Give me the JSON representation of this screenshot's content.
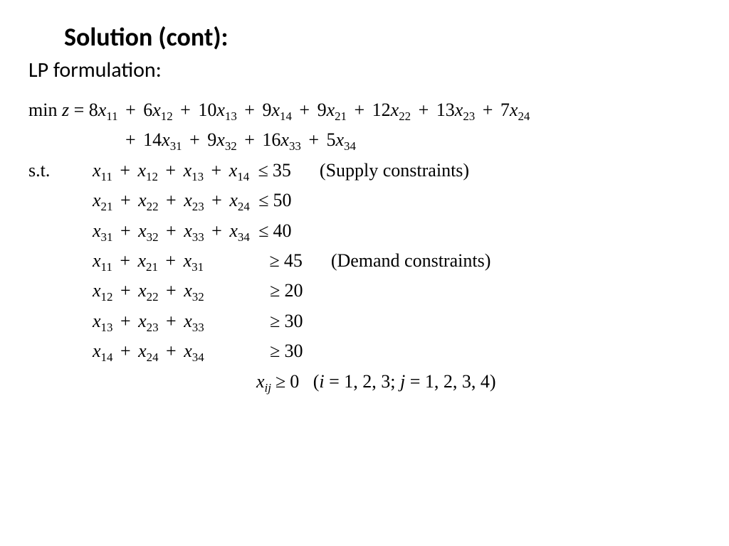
{
  "title": "Solution (cont):",
  "subtitle": "LP formulation:",
  "objective": {
    "prefix": "min ",
    "zvar": "z",
    "eq": " = ",
    "line1_terms": [
      {
        "c": "8",
        "v": "x",
        "s": "11"
      },
      {
        "c": "6",
        "v": "x",
        "s": "12"
      },
      {
        "c": "10",
        "v": "x",
        "s": "13"
      },
      {
        "c": "9",
        "v": "x",
        "s": "14"
      },
      {
        "c": "9",
        "v": "x",
        "s": "21"
      },
      {
        "c": "12",
        "v": "x",
        "s": "22"
      },
      {
        "c": "13",
        "v": "x",
        "s": "23"
      },
      {
        "c": "7",
        "v": "x",
        "s": "24"
      }
    ],
    "line2_terms": [
      {
        "c": "14",
        "v": "x",
        "s": "31"
      },
      {
        "c": "9",
        "v": "x",
        "s": "32"
      },
      {
        "c": "16",
        "v": "x",
        "s": "33"
      },
      {
        "c": "5",
        "v": "x",
        "s": "34"
      }
    ]
  },
  "st_label": "s.t.",
  "supply_comment": "(Supply constraints)",
  "demand_comment": "(Demand constraints)",
  "supply": [
    {
      "terms": [
        {
          "v": "x",
          "s": "11"
        },
        {
          "v": "x",
          "s": "12"
        },
        {
          "v": "x",
          "s": "13"
        },
        {
          "v": "x",
          "s": "14"
        }
      ],
      "rel": "≤",
      "rhs": "35"
    },
    {
      "terms": [
        {
          "v": "x",
          "s": "21"
        },
        {
          "v": "x",
          "s": "22"
        },
        {
          "v": "x",
          "s": "23"
        },
        {
          "v": "x",
          "s": "24"
        }
      ],
      "rel": "≤",
      "rhs": "50"
    },
    {
      "terms": [
        {
          "v": "x",
          "s": "31"
        },
        {
          "v": "x",
          "s": "32"
        },
        {
          "v": "x",
          "s": "33"
        },
        {
          "v": "x",
          "s": "34"
        }
      ],
      "rel": "≤",
      "rhs": "40"
    }
  ],
  "demand": [
    {
      "terms": [
        {
          "v": "x",
          "s": "11"
        },
        {
          "v": "x",
          "s": "21"
        },
        {
          "v": "x",
          "s": "31"
        }
      ],
      "rel": "≥",
      "rhs": "45"
    },
    {
      "terms": [
        {
          "v": "x",
          "s": "12"
        },
        {
          "v": "x",
          "s": "22"
        },
        {
          "v": "x",
          "s": "32"
        }
      ],
      "rel": "≥",
      "rhs": "20"
    },
    {
      "terms": [
        {
          "v": "x",
          "s": "13"
        },
        {
          "v": "x",
          "s": "23"
        },
        {
          "v": "x",
          "s": "33"
        }
      ],
      "rel": "≥",
      "rhs": "30"
    },
    {
      "terms": [
        {
          "v": "x",
          "s": "14"
        },
        {
          "v": "x",
          "s": "24"
        },
        {
          "v": "x",
          "s": "34"
        }
      ],
      "rel": "≥",
      "rhs": "30"
    }
  ],
  "nonneg": {
    "var": "x",
    "sub": "ij",
    "rel": "≥",
    "rhs": "0",
    "domain_open": "(",
    "i_label": "i",
    "i_eq": " = 1, 2, 3; ",
    "j_label": "j",
    "j_eq": " = 1, 2, 3, 4",
    "domain_close": ")"
  }
}
